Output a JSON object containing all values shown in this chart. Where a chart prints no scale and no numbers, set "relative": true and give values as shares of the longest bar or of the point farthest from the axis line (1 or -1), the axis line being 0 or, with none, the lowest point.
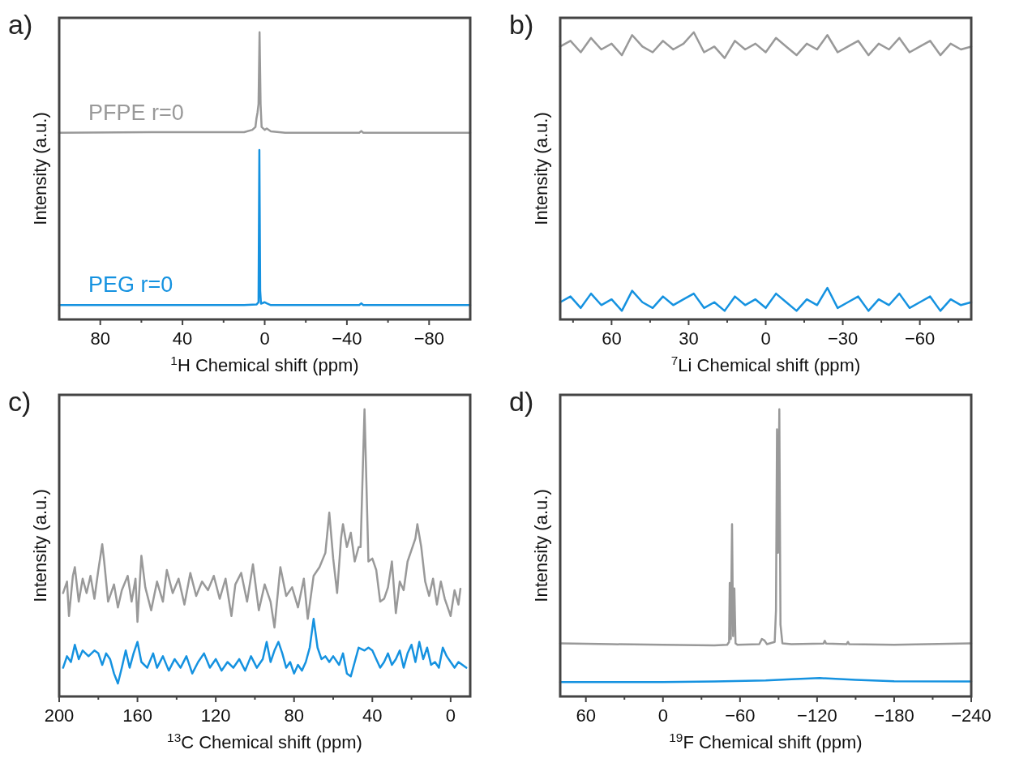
{
  "chart_data": [
    {
      "type": "line",
      "title": "a)",
      "xlabel": "$^{1}$H Chemical shift (ppm)",
      "ylabel": "Intensity (a.u.)",
      "relative": true,
      "tick_labels": "x",
      "xlim": [
        100,
        -100
      ],
      "xticks": [
        80,
        {
          "value": 60,
          "label": null
        },
        40,
        {
          "value": 20,
          "label": null
        },
        0,
        {
          "value": -20,
          "label": null
        },
        -40,
        {
          "value": -60,
          "label": null
        },
        -80
      ],
      "series": [
        {
          "name": "PFPE r=0",
          "color": "#999999",
          "x": [
            100,
            55,
            10,
            6,
            4.5,
            4,
            3.5,
            3,
            2.5,
            2,
            1.5,
            0,
            -1,
            -3,
            -10,
            -46,
            -47,
            -48,
            -100
          ],
          "values": [
            0.65,
            0.652,
            0.652,
            0.66,
            0.67,
            0.7,
            0.72,
            0.75,
            1.0,
            0.75,
            0.67,
            0.66,
            0.665,
            0.655,
            0.65,
            0.65,
            0.656,
            0.65,
            0.65
          ]
        },
        {
          "name": "PEG r=0",
          "color": "#1592e0",
          "x": [
            100,
            10,
            4,
            3,
            2.6,
            2.2,
            1.8,
            0,
            -1,
            -3,
            -46,
            -47,
            -48,
            -100
          ],
          "values": [
            0.05,
            0.05,
            0.052,
            0.06,
            0.59,
            0.1,
            0.055,
            0.06,
            0.056,
            0.05,
            0.05,
            0.056,
            0.05,
            0.05
          ]
        }
      ]
    },
    {
      "type": "line",
      "title": "b)",
      "xlabel": "$^{7}$Li Chemical shift (ppm)",
      "ylabel": "Intensity (a.u.)",
      "relative": true,
      "tick_labels": "x",
      "xlim": [
        80,
        -80
      ],
      "xticks": [
        {
          "value": 75,
          "label": null
        },
        60,
        {
          "value": 45,
          "label": null
        },
        30,
        {
          "value": 15,
          "label": null
        },
        0,
        {
          "value": -15,
          "label": null
        },
        -30,
        {
          "value": -45,
          "label": null
        },
        -60,
        {
          "value": -75,
          "label": null
        }
      ],
      "series": [
        {
          "color": "#999999",
          "x": [
            80,
            76,
            72,
            68,
            64,
            60,
            56,
            52,
            48,
            44,
            40,
            36,
            32,
            28,
            24,
            20,
            16,
            12,
            8,
            4,
            0,
            -4,
            -8,
            -12,
            -16,
            -20,
            -24,
            -28,
            -32,
            -36,
            -40,
            -44,
            -48,
            -52,
            -56,
            -60,
            -64,
            -68,
            -72,
            -76,
            -80
          ],
          "values": [
            0.95,
            0.97,
            0.93,
            0.98,
            0.94,
            0.96,
            0.92,
            0.99,
            0.95,
            0.93,
            0.97,
            0.94,
            0.96,
            1.0,
            0.93,
            0.95,
            0.91,
            0.97,
            0.94,
            0.96,
            0.93,
            0.98,
            0.95,
            0.92,
            0.96,
            0.94,
            0.99,
            0.93,
            0.95,
            0.97,
            0.92,
            0.96,
            0.94,
            0.98,
            0.93,
            0.95,
            0.97,
            0.92,
            0.96,
            0.94,
            0.95
          ]
        },
        {
          "color": "#1592e0",
          "x": [
            80,
            76,
            72,
            68,
            64,
            60,
            56,
            52,
            48,
            44,
            40,
            36,
            32,
            28,
            24,
            20,
            16,
            12,
            8,
            4,
            0,
            -4,
            -8,
            -12,
            -16,
            -20,
            -24,
            -28,
            -32,
            -36,
            -40,
            -44,
            -48,
            -52,
            -56,
            -60,
            -64,
            -68,
            -72,
            -76,
            -80
          ],
          "values": [
            0.06,
            0.08,
            0.04,
            0.09,
            0.05,
            0.07,
            0.03,
            0.1,
            0.06,
            0.04,
            0.08,
            0.05,
            0.07,
            0.09,
            0.04,
            0.06,
            0.03,
            0.08,
            0.05,
            0.07,
            0.04,
            0.09,
            0.06,
            0.03,
            0.07,
            0.05,
            0.11,
            0.04,
            0.06,
            0.08,
            0.03,
            0.07,
            0.05,
            0.09,
            0.04,
            0.06,
            0.08,
            0.03,
            0.07,
            0.05,
            0.06
          ]
        }
      ]
    },
    {
      "type": "line",
      "title": "c)",
      "xlabel": "$^{13}$C Chemical shift (ppm)",
      "ylabel": "Intensity (a.u.)",
      "relative": true,
      "tick_labels": "x",
      "xlim": [
        200,
        -10
      ],
      "xticks": [
        200,
        {
          "value": 180,
          "label": null
        },
        160,
        {
          "value": 140,
          "label": null
        },
        120,
        {
          "value": 100,
          "label": null
        },
        80,
        {
          "value": 60,
          "label": null
        },
        40,
        {
          "value": 20,
          "label": null
        },
        0
      ],
      "series": [
        {
          "color": "#999999",
          "x": [
            198,
            196,
            195,
            193,
            192,
            190,
            188,
            186,
            184,
            182,
            180,
            178,
            177,
            175,
            172,
            170,
            168,
            165,
            163,
            161,
            160,
            158,
            156,
            153,
            150,
            147,
            145,
            142,
            139,
            136,
            133,
            130,
            127,
            124,
            121,
            118,
            115,
            112,
            110,
            107,
            104,
            101,
            98,
            95,
            92,
            90,
            87,
            84,
            81,
            78,
            75,
            73,
            70,
            67,
            64,
            62,
            60,
            58,
            56,
            55,
            53,
            51,
            49,
            47,
            46,
            44,
            42,
            40,
            38,
            36,
            34,
            32,
            30,
            28,
            26,
            24,
            22,
            20,
            18,
            17,
            15,
            13,
            11,
            9,
            7,
            5,
            3,
            1,
            0,
            -2,
            -4,
            -5
          ],
          "values": [
            0.36,
            0.4,
            0.28,
            0.42,
            0.45,
            0.33,
            0.41,
            0.36,
            0.42,
            0.34,
            0.44,
            0.53,
            0.47,
            0.33,
            0.39,
            0.31,
            0.37,
            0.42,
            0.33,
            0.41,
            0.26,
            0.49,
            0.38,
            0.3,
            0.4,
            0.33,
            0.44,
            0.36,
            0.41,
            0.32,
            0.43,
            0.35,
            0.4,
            0.37,
            0.42,
            0.34,
            0.41,
            0.28,
            0.39,
            0.43,
            0.33,
            0.46,
            0.3,
            0.39,
            0.33,
            0.24,
            0.45,
            0.35,
            0.38,
            0.31,
            0.41,
            0.27,
            0.42,
            0.45,
            0.5,
            0.64,
            0.48,
            0.36,
            0.55,
            0.6,
            0.52,
            0.57,
            0.47,
            0.52,
            0.52,
            1.0,
            0.47,
            0.48,
            0.44,
            0.33,
            0.34,
            0.38,
            0.47,
            0.29,
            0.4,
            0.37,
            0.47,
            0.51,
            0.55,
            0.6,
            0.52,
            0.4,
            0.35,
            0.41,
            0.32,
            0.4,
            0.34,
            0.3,
            0.28,
            0.37,
            0.32,
            0.375
          ]
        },
        {
          "color": "#1592e0",
          "x": [
            198,
            196,
            194,
            192,
            190,
            188,
            185,
            182,
            180,
            178,
            176,
            174,
            172,
            170,
            168,
            166,
            164,
            162,
            160,
            158,
            155,
            152,
            150,
            147,
            144,
            141,
            138,
            135,
            132,
            129,
            126,
            123,
            120,
            117,
            114,
            111,
            108,
            105,
            102,
            99,
            96,
            94,
            92,
            90,
            88,
            86,
            84,
            82,
            80,
            78,
            76,
            74,
            72,
            70,
            68,
            66,
            64,
            62,
            60,
            57,
            55,
            53,
            51,
            49,
            47,
            44,
            42,
            40,
            38,
            36,
            34,
            32,
            30,
            28,
            26,
            24,
            22,
            20,
            18,
            16,
            14,
            12,
            10,
            8,
            6,
            4,
            2,
            0,
            -2,
            -4,
            -6,
            -8
          ],
          "values": [
            0.1,
            0.14,
            0.12,
            0.18,
            0.13,
            0.16,
            0.14,
            0.16,
            0.15,
            0.11,
            0.15,
            0.13,
            0.08,
            0.045,
            0.1,
            0.16,
            0.1,
            0.15,
            0.19,
            0.12,
            0.1,
            0.15,
            0.1,
            0.14,
            0.09,
            0.13,
            0.1,
            0.14,
            0.08,
            0.12,
            0.15,
            0.1,
            0.13,
            0.09,
            0.12,
            0.1,
            0.13,
            0.09,
            0.14,
            0.1,
            0.13,
            0.19,
            0.12,
            0.16,
            0.19,
            0.15,
            0.1,
            0.12,
            0.08,
            0.11,
            0.09,
            0.12,
            0.17,
            0.27,
            0.17,
            0.13,
            0.14,
            0.12,
            0.14,
            0.11,
            0.15,
            0.08,
            0.07,
            0.12,
            0.17,
            0.16,
            0.17,
            0.16,
            0.13,
            0.1,
            0.12,
            0.15,
            0.11,
            0.13,
            0.16,
            0.1,
            0.15,
            0.18,
            0.12,
            0.19,
            0.13,
            0.17,
            0.11,
            0.12,
            0.1,
            0.17,
            0.14,
            0.12,
            0.1,
            0.12,
            0.11,
            0.1
          ]
        }
      ]
    },
    {
      "type": "line",
      "title": "d)",
      "xlabel": "$^{19}$F Chemical shift (ppm)",
      "ylabel": "Intensity (a.u.)",
      "relative": true,
      "tick_labels": "x",
      "xlim": [
        80,
        -240
      ],
      "xticks": [
        60,
        {
          "value": 30,
          "label": null
        },
        0,
        {
          "value": -30,
          "label": null
        },
        -60,
        {
          "value": -90,
          "label": null
        },
        -120,
        {
          "value": -150,
          "label": null
        },
        -180,
        {
          "value": -210,
          "label": null
        },
        -240
      ],
      "series": [
        {
          "color": "#999999",
          "x": [
            80,
            40,
            0,
            -40,
            -50,
            -51.5,
            -52,
            -52.8,
            -53.8,
            -54.6,
            -55.6,
            -56.5,
            -58,
            -75,
            -77,
            -79,
            -81,
            -87,
            -88,
            -88.8,
            -89.6,
            -90.6,
            -91.5,
            -93,
            -100,
            -125,
            -126,
            -127,
            -143,
            -144,
            -145,
            -180,
            -240
          ],
          "values": [
            0.185,
            0.182,
            0.18,
            0.178,
            0.18,
            0.19,
            0.395,
            0.2,
            0.6,
            0.21,
            0.376,
            0.185,
            0.18,
            0.182,
            0.2,
            0.195,
            0.182,
            0.19,
            0.3,
            0.93,
            0.5,
            1.0,
            0.25,
            0.185,
            0.182,
            0.184,
            0.194,
            0.184,
            0.182,
            0.19,
            0.182,
            0.18,
            0.185
          ]
        },
        {
          "color": "#1592e0",
          "x": [
            80,
            0,
            -40,
            -80,
            -100,
            -122,
            -150,
            -180,
            -240
          ],
          "values": [
            0.05,
            0.05,
            0.052,
            0.056,
            0.06,
            0.064,
            0.058,
            0.053,
            0.052
          ]
        }
      ]
    }
  ]
}
